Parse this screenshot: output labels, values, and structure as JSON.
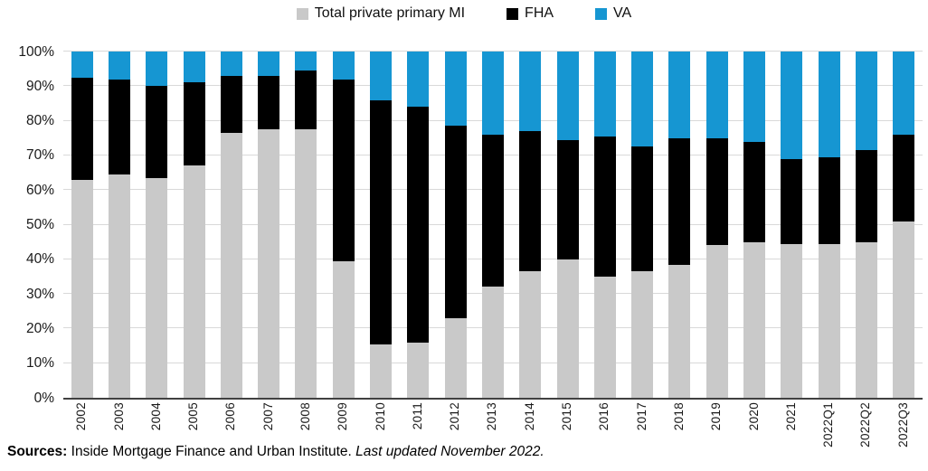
{
  "legend": [
    {
      "label": "Total private primary MI",
      "color": "#c9c9c9"
    },
    {
      "label": "FHA",
      "color": "#000000"
    },
    {
      "label": "VA",
      "color": "#1696d2"
    }
  ],
  "chart_data": {
    "type": "bar",
    "stacked": true,
    "normalized_100": true,
    "categories": [
      "2002",
      "2003",
      "2004",
      "2005",
      "2006",
      "2007",
      "2008",
      "2009",
      "2010",
      "2011",
      "2012",
      "2013",
      "2014",
      "2015",
      "2016",
      "2017",
      "2018",
      "2019",
      "2020",
      "2021",
      "2022Q1",
      "2022Q2",
      "2022Q3"
    ],
    "series": [
      {
        "name": "Total private primary MI",
        "color": "#c9c9c9",
        "values": [
          63,
          64.5,
          63.5,
          67,
          76.5,
          77.5,
          77.5,
          39.5,
          15.5,
          16,
          23,
          32,
          36.5,
          40,
          35,
          36.5,
          38.5,
          44,
          45,
          44.5,
          44.5,
          45,
          51
        ]
      },
      {
        "name": "FHA",
        "color": "#000000",
        "values": [
          29.5,
          27.5,
          26.5,
          24,
          16.5,
          15.5,
          17,
          52.5,
          70.5,
          68,
          55.5,
          44,
          40.5,
          34.5,
          40.5,
          36,
          36.5,
          31,
          29,
          24.5,
          25,
          26.5,
          25
        ]
      },
      {
        "name": "VA",
        "color": "#1696d2",
        "values": [
          7.5,
          8,
          10,
          9,
          7,
          7,
          5.5,
          8,
          14,
          16,
          21.5,
          24,
          23,
          25.5,
          24.5,
          27.5,
          25,
          25,
          26,
          31,
          30.5,
          28.5,
          24
        ]
      }
    ],
    "title": "",
    "xlabel": "",
    "ylabel": "",
    "ylim": [
      0,
      100
    ],
    "yticks": [
      "0%",
      "10%",
      "20%",
      "30%",
      "40%",
      "50%",
      "60%",
      "70%",
      "80%",
      "90%",
      "100%"
    ],
    "grid": "horizontal",
    "legend_position": "top"
  },
  "footer": {
    "sources_label": "Sources:",
    "sources_text": " Inside Mortgage Finance and Urban Institute. ",
    "updated_text": "Last updated November 2022."
  }
}
